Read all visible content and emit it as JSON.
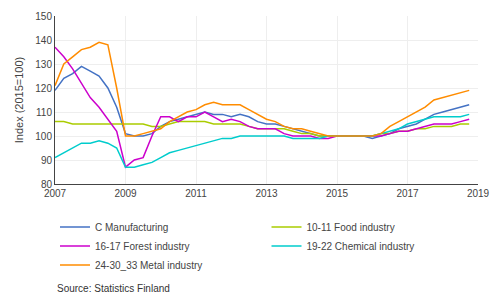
{
  "chart_data": {
    "type": "line",
    "y_label": "Index (2015=100)",
    "source": "Source: Statistics Finland",
    "xlim": [
      2007.0,
      2019.0
    ],
    "ylim": [
      80,
      150
    ],
    "xticks": [
      2007,
      2009,
      2011,
      2013,
      2015,
      2017,
      2019
    ],
    "yticks": [
      80,
      90,
      100,
      110,
      120,
      130,
      140,
      150
    ],
    "grid": true,
    "legend": "bottom",
    "x": [
      2007.0,
      2007.25,
      2007.5,
      2007.75,
      2008.0,
      2008.25,
      2008.5,
      2008.75,
      2009.0,
      2009.25,
      2009.5,
      2009.75,
      2010.0,
      2010.25,
      2010.5,
      2010.75,
      2011.0,
      2011.25,
      2011.5,
      2011.75,
      2012.0,
      2012.25,
      2012.5,
      2012.75,
      2013.0,
      2013.25,
      2013.5,
      2013.75,
      2014.0,
      2014.25,
      2014.5,
      2014.75,
      2015.0,
      2015.25,
      2015.5,
      2015.75,
      2016.0,
      2016.25,
      2016.5,
      2016.75,
      2017.0,
      2017.25,
      2017.5,
      2017.75,
      2018.0,
      2018.25,
      2018.5,
      2018.75
    ],
    "series": [
      {
        "name": "C Manufacturing",
        "color": "#4472C4",
        "values": [
          119,
          124,
          126,
          129,
          127,
          125,
          120,
          112,
          101,
          100,
          100,
          101,
          104,
          106,
          107,
          108,
          109,
          110,
          109,
          109,
          108,
          109,
          108,
          106,
          105,
          105,
          104,
          103,
          102,
          101,
          100,
          100,
          100,
          100,
          100,
          100,
          99,
          100,
          101,
          103,
          104,
          105,
          107,
          109,
          110,
          111,
          112,
          113
        ]
      },
      {
        "name": "10-11 Food industry",
        "color": "#AACC00",
        "values": [
          106,
          106,
          105,
          105,
          105,
          105,
          105,
          105,
          105,
          105,
          105,
          104,
          104,
          105,
          106,
          106,
          106,
          106,
          105,
          105,
          105,
          105,
          104,
          103,
          103,
          103,
          103,
          102,
          101,
          101,
          100,
          100,
          100,
          100,
          100,
          100,
          100,
          101,
          101,
          102,
          102,
          103,
          103,
          104,
          104,
          104,
          105,
          105
        ]
      },
      {
        "name": "16-17 Forest industry",
        "color": "#CC00CC",
        "values": [
          137,
          133,
          128,
          122,
          116,
          112,
          107,
          102,
          87,
          90,
          91,
          100,
          108,
          108,
          106,
          108,
          108,
          110,
          108,
          106,
          107,
          106,
          104,
          103,
          103,
          103,
          101,
          100,
          100,
          100,
          99,
          99,
          100,
          100,
          100,
          100,
          100,
          100,
          101,
          102,
          102,
          103,
          104,
          105,
          105,
          105,
          106,
          107
        ]
      },
      {
        "name": "19-22 Chemical industry",
        "color": "#00CCCC",
        "values": [
          91,
          93,
          95,
          97,
          97,
          98,
          97,
          95,
          87,
          87,
          88,
          89,
          91,
          93,
          94,
          95,
          96,
          97,
          98,
          99,
          99,
          100,
          100,
          100,
          100,
          100,
          100,
          99,
          99,
          99,
          99,
          100,
          100,
          100,
          100,
          100,
          100,
          101,
          102,
          103,
          105,
          106,
          107,
          108,
          108,
          108,
          108,
          109
        ]
      },
      {
        "name": "24-30_33 Metal industry",
        "color": "#FF8C00",
        "values": [
          121,
          130,
          133,
          136,
          137,
          139,
          138,
          120,
          100,
          100,
          101,
          102,
          103,
          106,
          108,
          110,
          111,
          113,
          114,
          113,
          113,
          113,
          111,
          109,
          107,
          106,
          104,
          103,
          103,
          102,
          101,
          100,
          100,
          100,
          100,
          100,
          100,
          101,
          104,
          106,
          108,
          110,
          112,
          115,
          116,
          117,
          118,
          119
        ]
      }
    ]
  }
}
